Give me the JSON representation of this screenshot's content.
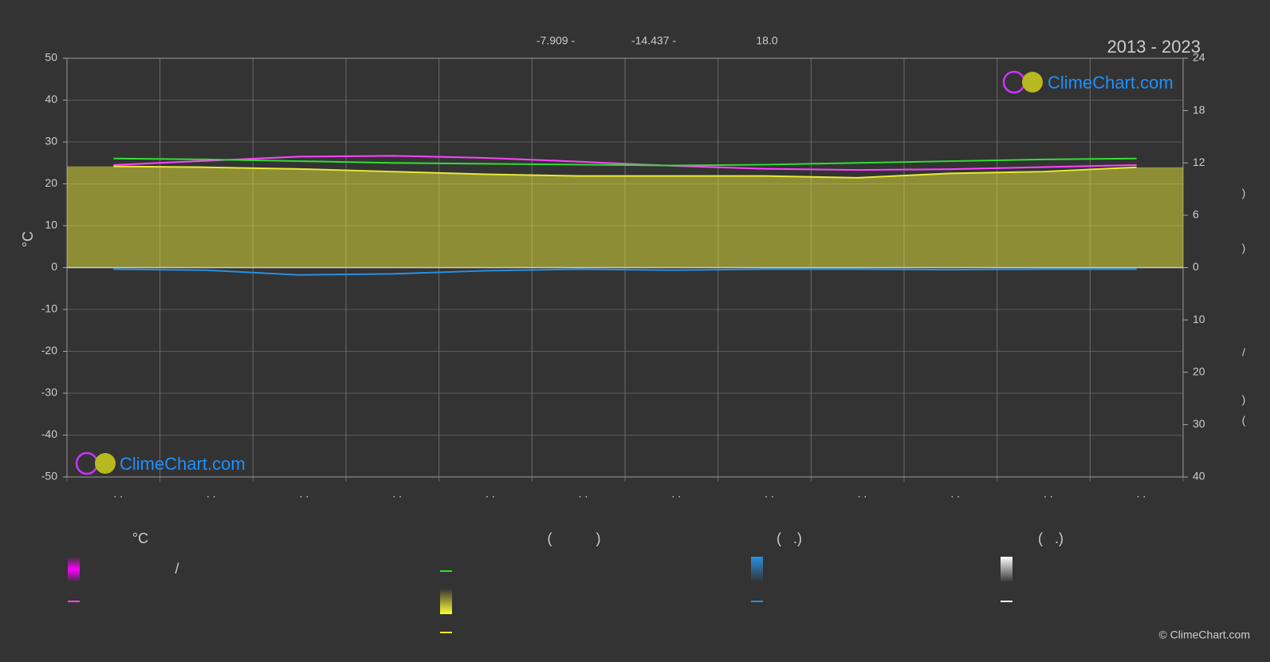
{
  "chart_data": {
    "type": "line",
    "title": "2013 - 2023",
    "annotations": [
      "-7.909 -",
      "-14.437 -",
      "18.0"
    ],
    "ylabel": "°C",
    "y2_labels": [
      ")",
      ")",
      "/",
      ")",
      "("
    ],
    "categories": [
      ". .",
      ". .",
      ". .",
      ". .",
      ". .",
      ". .",
      ". .",
      ". .",
      ". .",
      ". .",
      ". .",
      ". ."
    ],
    "ylim": [
      -50,
      50
    ],
    "yticks": [
      -50,
      -40,
      -30,
      -20,
      -10,
      0,
      10,
      20,
      30,
      40,
      50
    ],
    "y2lim": [
      0,
      24
    ],
    "y2ticks": [
      0,
      6,
      12,
      18,
      24
    ],
    "y3lim": [
      0,
      40
    ],
    "y3ticks": [
      10,
      20,
      30,
      40
    ],
    "grid": true,
    "series": [
      {
        "color": "#ff44ff",
        "axis": "y",
        "values": [
          24.5,
          25.5,
          26.5,
          26.7,
          26.2,
          25.3,
          24.3,
          23.6,
          23.3,
          23.5,
          24.0,
          24.5
        ]
      },
      {
        "color": "#33dd33",
        "axis": "y2",
        "values": [
          12.5,
          12.4,
          12.2,
          12.0,
          11.9,
          11.8,
          11.7,
          11.8,
          12.0,
          12.2,
          12.4,
          12.5
        ]
      },
      {
        "color": "#e8e83a",
        "axis": "y2",
        "fill": true,
        "values": [
          11.6,
          11.5,
          11.3,
          11.0,
          10.7,
          10.5,
          10.5,
          10.5,
          10.3,
          10.8,
          11.0,
          11.5
        ]
      },
      {
        "color": "#2a8fe0",
        "axis": "y3",
        "values": [
          0.3,
          0.5,
          1.4,
          1.2,
          0.6,
          0.3,
          0.5,
          0.3,
          0.3,
          0.4,
          0.3,
          0.3
        ]
      }
    ],
    "logo": "ClimeChart.com",
    "copyright": "© ClimeChart.com",
    "legend": {
      "headings": [
        "°C",
        "(           )",
        "(   .)",
        "(   .)"
      ],
      "items": [
        "/"
      ]
    }
  }
}
